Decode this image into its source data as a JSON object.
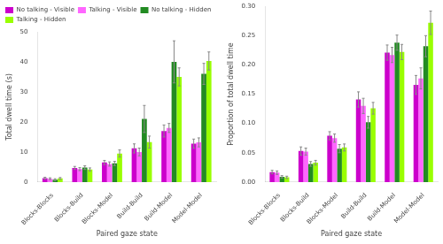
{
  "chart_data": [
    {
      "type": "bar",
      "categories": [
        "Blocks-Blocks",
        "Blocks-Build",
        "Blocks-Model",
        "Build-Build",
        "Build-Model",
        "Model-Model"
      ],
      "series": [
        {
          "name": "No talking - Visible",
          "color": "#CC00CC",
          "values": [
            1.3,
            4.7,
            6.5,
            11.2,
            17.0,
            12.8
          ],
          "errors": [
            0.3,
            0.5,
            0.7,
            1.5,
            2.0,
            1.5
          ]
        },
        {
          "name": "Talking - Visible",
          "color": "#FF66FF",
          "values": [
            1.1,
            4.3,
            6.0,
            10.0,
            18.0,
            13.2
          ],
          "errors": [
            0.3,
            0.5,
            0.7,
            1.3,
            1.5,
            1.5
          ]
        },
        {
          "name": "No talking - Hidden",
          "color": "#228B22",
          "values": [
            0.8,
            4.8,
            6.2,
            21.0,
            40.0,
            36.0
          ],
          "errors": [
            0.3,
            0.6,
            0.7,
            4.5,
            7.0,
            3.5
          ]
        },
        {
          "name": "Talking - Hidden",
          "color": "#99FF00",
          "values": [
            1.2,
            4.2,
            9.5,
            13.3,
            35.0,
            40.3
          ],
          "errors": [
            0.3,
            0.5,
            1.2,
            2.0,
            3.0,
            3.0
          ]
        }
      ],
      "xlabel": "Paired gaze state",
      "ylabel": "Total dwell time (s)",
      "ylim": [
        0,
        50
      ],
      "yticks": [
        0,
        10,
        20,
        30,
        40,
        50
      ],
      "grid": false,
      "legend": "upper left"
    },
    {
      "type": "bar",
      "categories": [
        "Blocks-Blocks",
        "Blocks-Build",
        "Blocks-Model",
        "Build-Build",
        "Build-Model",
        "Model-Model"
      ],
      "series": [
        {
          "name": "No talking - Visible",
          "color": "#CC00CC",
          "values": [
            0.017,
            0.053,
            0.079,
            0.141,
            0.221,
            0.166
          ],
          "errors": [
            0.003,
            0.007,
            0.007,
            0.013,
            0.013,
            0.016
          ]
        },
        {
          "name": "Talking - Visible",
          "color": "#FF66FF",
          "values": [
            0.016,
            0.052,
            0.075,
            0.13,
            0.217,
            0.177
          ],
          "errors": [
            0.003,
            0.006,
            0.007,
            0.013,
            0.013,
            0.018
          ]
        },
        {
          "name": "No talking - Hidden",
          "color": "#228B22",
          "values": [
            0.009,
            0.031,
            0.057,
            0.102,
            0.238,
            0.232
          ],
          "errors": [
            0.002,
            0.004,
            0.007,
            0.01,
            0.013,
            0.018
          ]
        },
        {
          "name": "Talking - Hidden",
          "color": "#99FF00",
          "values": [
            0.008,
            0.033,
            0.059,
            0.126,
            0.222,
            0.272
          ],
          "errors": [
            0.002,
            0.004,
            0.006,
            0.01,
            0.013,
            0.02
          ]
        }
      ],
      "xlabel": "Paired gaze state",
      "ylabel": "Proportion of total dwell time",
      "ylim": [
        0,
        0.3
      ],
      "yticks": [
        {
          "value": 0,
          "label": "0.00"
        },
        0.05,
        {
          "value": 0.1,
          "label": "0.10"
        },
        0.15,
        {
          "value": 0.2,
          "label": "0.20"
        },
        0.25,
        {
          "value": 0.3,
          "label": "0.30"
        }
      ],
      "grid": false
    }
  ]
}
